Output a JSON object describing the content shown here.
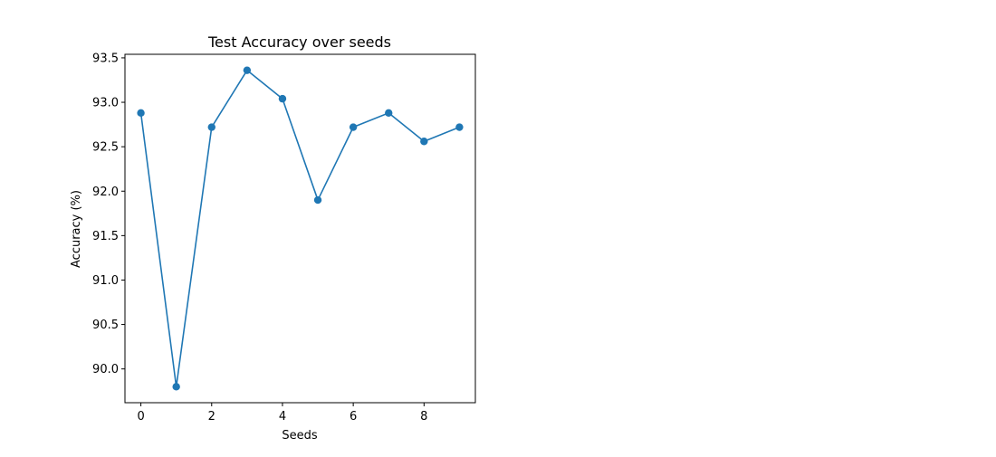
{
  "chart_data": {
    "type": "line",
    "title": "Test Accuracy over seeds",
    "xlabel": "Seeds",
    "ylabel": "Accuracy (%)",
    "x": [
      0,
      1,
      2,
      3,
      4,
      5,
      6,
      7,
      8,
      9
    ],
    "series": [
      {
        "values": [
          92.88,
          89.8,
          92.72,
          93.36,
          93.04,
          91.9,
          92.72,
          92.88,
          92.56,
          92.72
        ],
        "color": "#1f77b4",
        "marker": "circle"
      }
    ],
    "xlim": [
      -0.45,
      9.45
    ],
    "ylim": [
      89.62,
      93.54
    ],
    "xticks": [
      0,
      2,
      4,
      6,
      8
    ],
    "xtick_labels": [
      "0",
      "2",
      "4",
      "6",
      "8"
    ],
    "yticks": [
      90.0,
      90.5,
      91.0,
      91.5,
      92.0,
      92.5,
      93.0,
      93.5
    ],
    "ytick_labels": [
      "90.0",
      "90.5",
      "91.0",
      "91.5",
      "92.0",
      "92.5",
      "93.0",
      "93.5"
    ],
    "grid": false,
    "legend": false
  }
}
